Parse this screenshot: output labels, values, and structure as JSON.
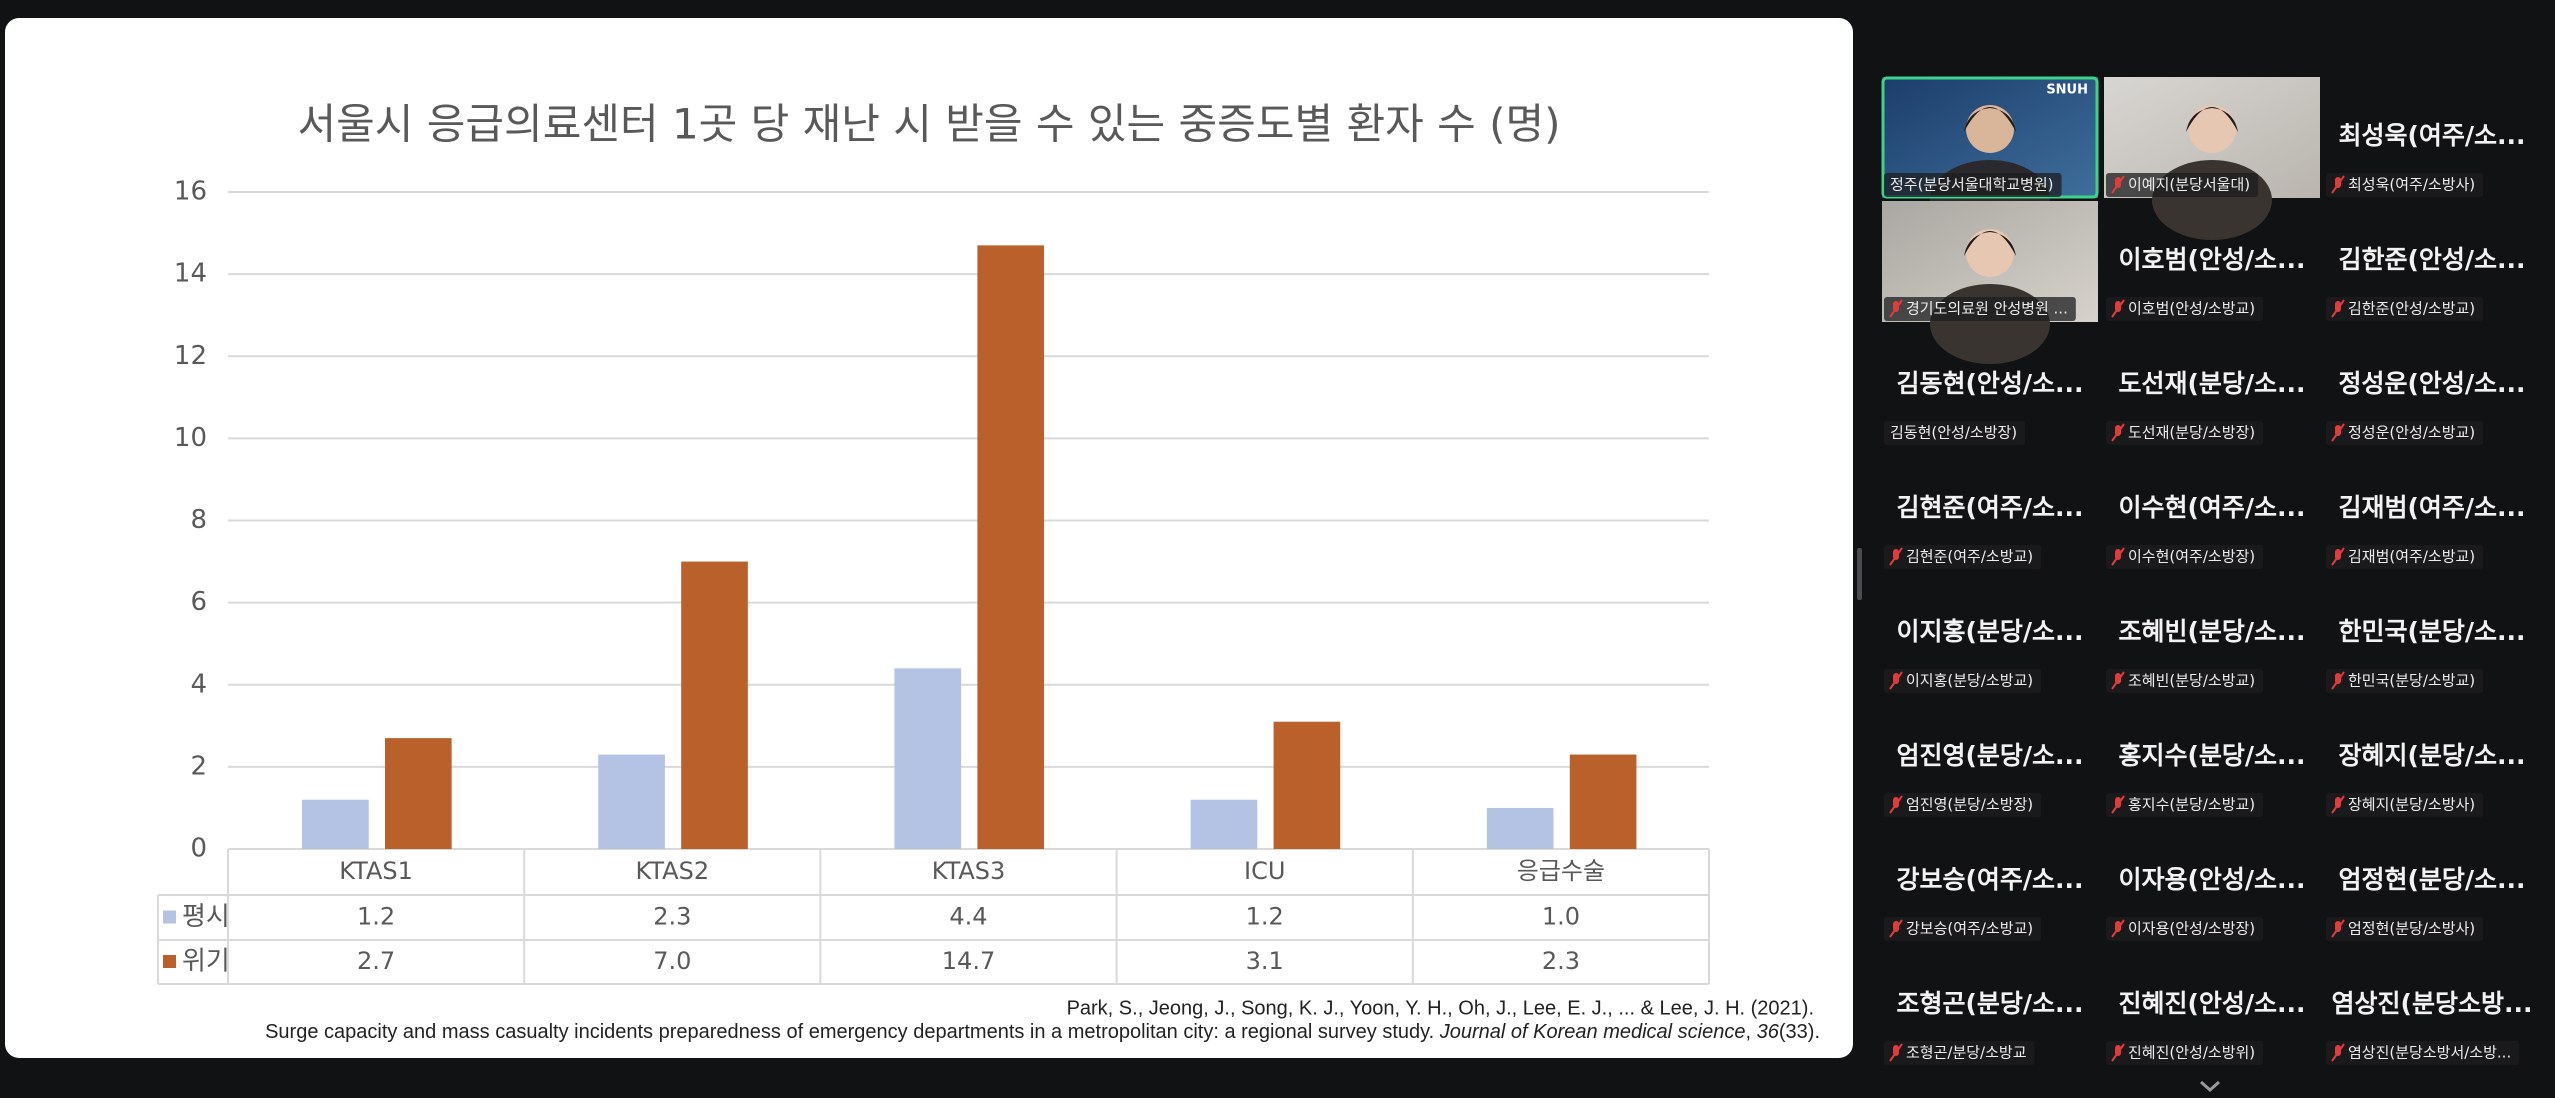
{
  "chart_data": {
    "type": "bar",
    "title": "서울시 응급의료센터 1곳 당 재난 시 받을 수 있는 중증도별 환자 수 (명)",
    "categories": [
      "KTAS1",
      "KTAS2",
      "KTAS3",
      "ICU",
      "응급수술"
    ],
    "series": [
      {
        "name": "평시",
        "color": "#b4c2e4",
        "values": [
          1.2,
          2.3,
          4.4,
          1.2,
          1.0
        ],
        "value_labels": [
          "1.2",
          "2.3",
          "4.4",
          "1.2",
          "1.0"
        ]
      },
      {
        "name": "위기",
        "color": "#b9602b",
        "values": [
          2.7,
          7.0,
          14.7,
          3.1,
          2.3
        ],
        "value_labels": [
          "2.7",
          "7.0",
          "14.7",
          "3.1",
          "2.3"
        ]
      }
    ],
    "ylim": [
      0,
      16
    ],
    "yticks": [
      0,
      2,
      4,
      6,
      8,
      10,
      12,
      14,
      16
    ],
    "grid": true,
    "citation": {
      "line1": "Park, S., Jeong, J., Song, K. J., Yoon, Y. H., Oh, J., Lee, E. J., ... & Lee, J. H. (2021).",
      "line2": "Surge capacity and mass casualty incidents preparedness of emergency departments in a metropolitan city: a regional survey study. ",
      "journal": "Journal of Korean medical science",
      "sep": ", ",
      "volume": "36",
      "issue": "(33)."
    }
  },
  "participants": [
    {
      "label": "정주(분당서울대학교병원)",
      "video": true,
      "active": true,
      "muted": false,
      "badge": "SNUH"
    },
    {
      "label": "이예지(분당서울대)",
      "video": true,
      "muted": true
    },
    {
      "name": "최성욱(여주/소...",
      "label": "최성욱(여주/소방사)",
      "muted": true
    },
    {
      "label": "경기도의료원 안성병원 ...",
      "video": true,
      "muted": true
    },
    {
      "name": "이호범(안성/소...",
      "label": "이호범(안성/소방교)",
      "muted": true
    },
    {
      "name": "김한준(안성/소...",
      "label": "김한준(안성/소방교)",
      "muted": true
    },
    {
      "name": "김동현(안성/소...",
      "label": "김동현(안성/소방장)",
      "muted": false
    },
    {
      "name": "도선재(분당/소...",
      "label": "도선재(분당/소방장)",
      "muted": true
    },
    {
      "name": "정성운(안성/소...",
      "label": "정성운(안성/소방교)",
      "muted": true
    },
    {
      "name": "김현준(여주/소...",
      "label": "김현준(여주/소방교)",
      "muted": true
    },
    {
      "name": "이수현(여주/소...",
      "label": "이수현(여주/소방장)",
      "muted": true
    },
    {
      "name": "김재범(여주/소...",
      "label": "김재범(여주/소방교)",
      "muted": true
    },
    {
      "name": "이지홍(분당/소...",
      "label": "이지홍(분당/소방교)",
      "muted": true
    },
    {
      "name": "조혜빈(분당/소...",
      "label": "조혜빈(분당/소방교)",
      "muted": true
    },
    {
      "name": "한민국(분당/소...",
      "label": "한민국(분당/소방교)",
      "muted": true
    },
    {
      "name": "엄진영(분당/소...",
      "label": "엄진영(분당/소방장)",
      "muted": true
    },
    {
      "name": "홍지수(분당/소...",
      "label": "홍지수(분당/소방교)",
      "muted": true
    },
    {
      "name": "장혜지(분당/소...",
      "label": "장혜지(분당/소방사)",
      "muted": true
    },
    {
      "name": "강보승(여주/소...",
      "label": "강보승(여주/소방교)",
      "muted": true
    },
    {
      "name": "이자용(안성/소...",
      "label": "이자용(안성/소방장)",
      "muted": true
    },
    {
      "name": "엄정현(분당/소...",
      "label": "엄정현(분당/소방사)",
      "muted": true
    },
    {
      "name": "조형곤(분당/소...",
      "label": "조형곤/분당/소방교",
      "muted": true
    },
    {
      "name": "진혜진(안성/소...",
      "label": "진혜진(안성/소방위)",
      "muted": true
    },
    {
      "name": "염상진(분당소방...",
      "label": "염상진(분당소방서/소방...",
      "muted": true
    }
  ]
}
